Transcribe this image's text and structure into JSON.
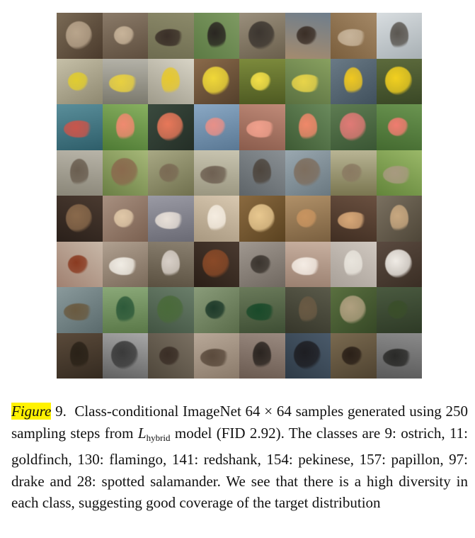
{
  "figure": {
    "rows": [
      {
        "cells": [
          {
            "bg": [
              "#7a6a55",
              "#4a3a2c"
            ],
            "subject": "#b9a58c"
          },
          {
            "bg": [
              "#8a7a68",
              "#5e4e3e"
            ],
            "subject": "#c8b49a"
          },
          {
            "bg": [
              "#8c8a6a",
              "#6e6c50"
            ],
            "subject": "#3a2f28"
          },
          {
            "bg": [
              "#7e9a62",
              "#5c7a44"
            ],
            "subject": "#2a2622"
          },
          {
            "bg": [
              "#9a8f7c",
              "#6a5f4c"
            ],
            "subject": "#3c3630"
          },
          {
            "bg": [
              "#6f7e8c",
              "#a48b6e"
            ],
            "subject": "#3a2e26"
          },
          {
            "bg": [
              "#a48866",
              "#7a5e3c"
            ],
            "subject": "#c7b49a"
          },
          {
            "bg": [
              "#d8dde0",
              "#a8b0b4"
            ],
            "subject": "#5a5650"
          }
        ]
      },
      {
        "cells": [
          {
            "bg": [
              "#c6c0a8",
              "#8e8870"
            ],
            "subject": "#e0cc30"
          },
          {
            "bg": [
              "#b4b2a8",
              "#7a786c"
            ],
            "subject": "#e8d040"
          },
          {
            "bg": [
              "#d8d4c6",
              "#9e9a8a"
            ],
            "subject": "#e6c830"
          },
          {
            "bg": [
              "#8a6a4a",
              "#54402c"
            ],
            "subject": "#f0d838"
          },
          {
            "bg": [
              "#7c8a3c",
              "#4e5a22"
            ],
            "subject": "#f4e048"
          },
          {
            "bg": [
              "#88a060",
              "#5a7040"
            ],
            "subject": "#e8d44a"
          },
          {
            "bg": [
              "#6a7a86",
              "#40505c"
            ],
            "subject": "#f0c820"
          },
          {
            "bg": [
              "#5c6a3c",
              "#3a4826"
            ],
            "subject": "#f2d020"
          }
        ]
      },
      {
        "cells": [
          {
            "bg": [
              "#5a8e9a",
              "#2e5e6a"
            ],
            "subject": "#c8564c"
          },
          {
            "bg": [
              "#88b060",
              "#4e7a34"
            ],
            "subject": "#f08a70"
          },
          {
            "bg": [
              "#3a4a3e",
              "#242e26"
            ],
            "subject": "#e8785a"
          },
          {
            "bg": [
              "#8aa8c4",
              "#5a7894"
            ],
            "subject": "#e89088"
          },
          {
            "bg": [
              "#c08a78",
              "#8a5c4c"
            ],
            "subject": "#f0a08c"
          },
          {
            "bg": [
              "#6a8a5c",
              "#3e5a34"
            ],
            "subject": "#f0886a"
          },
          {
            "bg": [
              "#5e7c52",
              "#3a5634"
            ],
            "subject": "#e07a76"
          },
          {
            "bg": [
              "#6a9450",
              "#446a30"
            ],
            "subject": "#f07c70"
          }
        ]
      },
      {
        "cells": [
          {
            "bg": [
              "#b8b4a8",
              "#8a8678"
            ],
            "subject": "#6a5e50"
          },
          {
            "bg": [
              "#a6b878",
              "#6a7e44"
            ],
            "subject": "#8a6a4e"
          },
          {
            "bg": [
              "#a8a884",
              "#70704e"
            ],
            "subject": "#7a6a54"
          },
          {
            "bg": [
              "#c8c4b0",
              "#9a9680"
            ],
            "subject": "#6e6052"
          },
          {
            "bg": [
              "#8a9094",
              "#5e6468"
            ],
            "subject": "#4e463e"
          },
          {
            "bg": [
              "#9aa8b0",
              "#6a7880"
            ],
            "subject": "#7e6e5e"
          },
          {
            "bg": [
              "#b8b494",
              "#7a7650"
            ],
            "subject": "#8a7a62"
          },
          {
            "bg": [
              "#9ab868",
              "#62843a"
            ],
            "subject": "#a89a80"
          }
        ]
      },
      {
        "cells": [
          {
            "bg": [
              "#4a3a30",
              "#2a201a"
            ],
            "subject": "#8a6a4c"
          },
          {
            "bg": [
              "#a89080",
              "#7a6050"
            ],
            "subject": "#e0c8a8"
          },
          {
            "bg": [
              "#9a9aa4",
              "#6a6a74"
            ],
            "subject": "#e8e0d8"
          },
          {
            "bg": [
              "#d8c8b0",
              "#a89880"
            ],
            "subject": "#f4ece0"
          },
          {
            "bg": [
              "#8a6a40",
              "#5a4220"
            ],
            "subject": "#e8c890"
          },
          {
            "bg": [
              "#b09068",
              "#7a6040"
            ],
            "subject": "#c89460"
          },
          {
            "bg": [
              "#6a5040",
              "#402e22"
            ],
            "subject": "#d8a878"
          },
          {
            "bg": [
              "#7a7060",
              "#4e4638"
            ],
            "subject": "#c8a880"
          }
        ]
      },
      {
        "cells": [
          {
            "bg": [
              "#c8b8a8",
              "#a08070"
            ],
            "subject": "#8a3a20"
          },
          {
            "bg": [
              "#b0a090",
              "#7a6a5a"
            ],
            "subject": "#f0ece4"
          },
          {
            "bg": [
              "#8a8070",
              "#5a5040"
            ],
            "subject": "#d8d0c8"
          },
          {
            "bg": [
              "#4a3a30",
              "#2a1e16"
            ],
            "subject": "#8a4a28"
          },
          {
            "bg": [
              "#a09890",
              "#706860"
            ],
            "subject": "#3a342e"
          },
          {
            "bg": [
              "#c8b0a0",
              "#9a8070"
            ],
            "subject": "#f4ece4"
          },
          {
            "bg": [
              "#d0c8c0",
              "#a8a098"
            ],
            "subject": "#e8e4dc"
          },
          {
            "bg": [
              "#5a4a40",
              "#3a2e24"
            ],
            "subject": "#f0ece6"
          }
        ]
      },
      {
        "cells": [
          {
            "bg": [
              "#8a9a9c",
              "#5a6a6c"
            ],
            "subject": "#6a5a40"
          },
          {
            "bg": [
              "#8aa878",
              "#5a7848"
            ],
            "subject": "#2e5a3a"
          },
          {
            "bg": [
              "#6a7e6a",
              "#425442"
            ],
            "subject": "#4a6a3a"
          },
          {
            "bg": [
              "#8a9c7a",
              "#5a6c4a"
            ],
            "subject": "#1e3a2a"
          },
          {
            "bg": [
              "#6a7a5a",
              "#3e4e34"
            ],
            "subject": "#1a4a2a"
          },
          {
            "bg": [
              "#5a5a4a",
              "#36362a"
            ],
            "subject": "#6a5a44"
          },
          {
            "bg": [
              "#5a7040",
              "#364826"
            ],
            "subject": "#b0a080"
          },
          {
            "bg": [
              "#4a5a40",
              "#2e3a26"
            ],
            "subject": "#3a4e2a"
          }
        ]
      },
      {
        "cells": [
          {
            "bg": [
              "#5a4a3a",
              "#342a20"
            ],
            "subject": "#2a2218"
          },
          {
            "bg": [
              "#a8a8a8",
              "#606060"
            ],
            "subject": "#3a3a3a"
          },
          {
            "bg": [
              "#7a7062",
              "#4e463a"
            ],
            "subject": "#3a2e26"
          },
          {
            "bg": [
              "#b8a898",
              "#8a7a6a"
            ],
            "subject": "#5a4a3c"
          },
          {
            "bg": [
              "#9a8a80",
              "#6a5a50"
            ],
            "subject": "#2a2420"
          },
          {
            "bg": [
              "#4a5a6a",
              "#2e3a46"
            ],
            "subject": "#1e1e22"
          },
          {
            "bg": [
              "#7a6a50",
              "#4e4230"
            ],
            "subject": "#2a2018"
          },
          {
            "bg": [
              "#8a8a8a",
              "#5a5a5a"
            ],
            "subject": "#2a2a28"
          }
        ]
      }
    ]
  },
  "caption": {
    "label": "Figure",
    "number": "9.",
    "text_before_math": "Class-conditional ImageNet 64 × 64 samples generated using 250 sampling steps from",
    "math_symbol": "L",
    "math_subscript": "hybrid",
    "text_after_math": "model (FID 2.92). The classes are 9: ostrich, 11: goldfinch, 130: flamingo, 141: redshank, 154: pekinese, 157: papillon, 97: drake and 28: spotted salamander. We see that there is a high diversity in each class, suggesting good coverage of the target distribution"
  }
}
